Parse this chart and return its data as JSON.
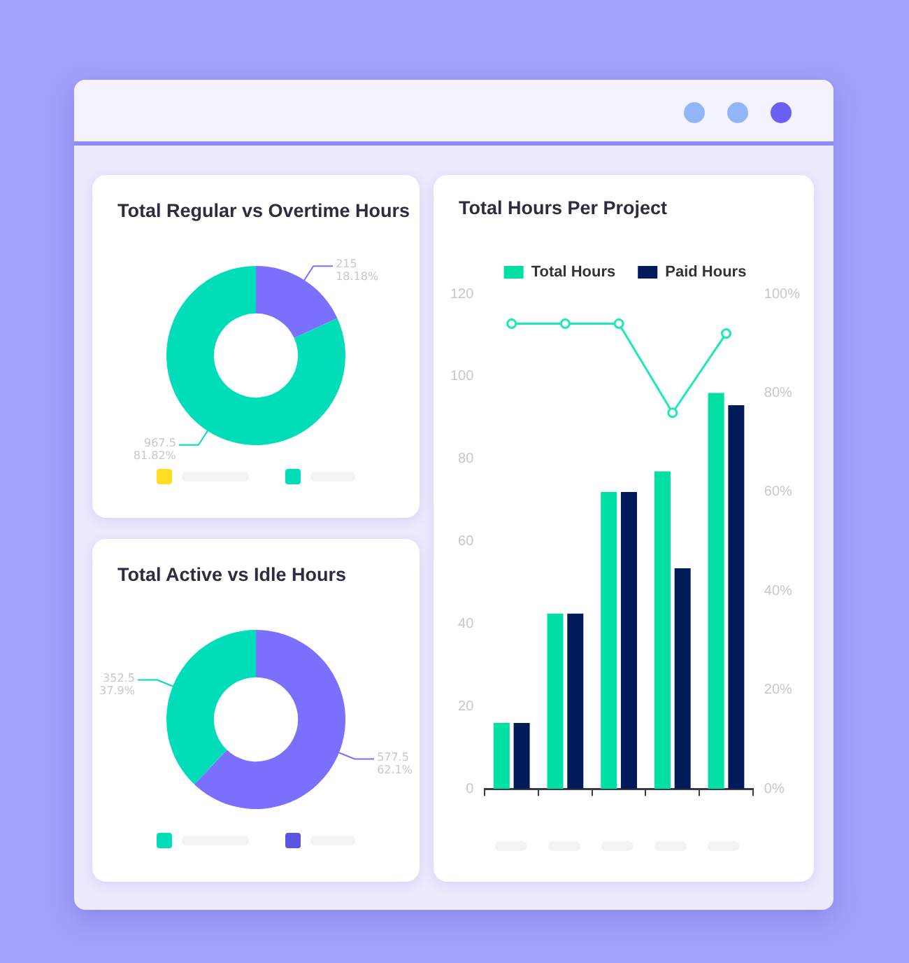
{
  "chart_data": [
    {
      "type": "donut",
      "title": "Total Regular vs Overtime Hours",
      "categories": [
        null,
        null
      ],
      "values": [
        215,
        967.5
      ],
      "colors": [
        "#7b6ffd",
        "#00ddb8"
      ],
      "value_labels": [
        "215\n18.18%",
        "967.5\n81.82%"
      ],
      "legend": false
    },
    {
      "type": "donut",
      "title": "Total Active vs Idle Hours",
      "categories": [
        null,
        null
      ],
      "values": [
        577.5,
        352.5
      ],
      "colors": [
        "#7b6ffd",
        "#00ddb8"
      ],
      "value_labels": [
        "577.5\n62.1%",
        "352.5\n37.9%"
      ],
      "legend": false
    },
    {
      "type": "bar",
      "title": "Total Hours Per Project",
      "categories": [
        null,
        null,
        null,
        null,
        null
      ],
      "series": [
        {
          "name": "Total Hours",
          "color": "#00e0a4",
          "values": [
            16,
            42.5,
            72,
            77,
            96
          ]
        },
        {
          "name": "Paid Hours",
          "color": "#001a5a",
          "values": [
            16,
            42.5,
            72,
            53.5,
            93
          ]
        },
        {
          "type": "line",
          "axis": "y2",
          "color": "#1de9b6",
          "values": [
            94,
            94,
            94,
            76,
            92
          ]
        }
      ],
      "ylim": [
        0,
        120
      ],
      "yticks": [
        0,
        20,
        40,
        60,
        80,
        100,
        120
      ],
      "y2lim": [
        0,
        100
      ],
      "y2ticks": [
        {
          "value": 0,
          "label": "0%"
        },
        {
          "value": 20,
          "label": "20%"
        },
        {
          "value": 40,
          "label": "40%"
        },
        {
          "value": 60,
          "label": "60%"
        },
        {
          "value": 80,
          "label": "80%"
        },
        {
          "value": 100,
          "label": "100%"
        }
      ],
      "grid": false,
      "legend": "top",
      "marker": "circle",
      "line_style": "solid"
    }
  ]
}
